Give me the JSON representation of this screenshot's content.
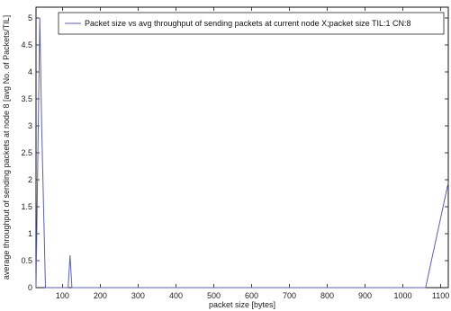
{
  "chart_data": {
    "type": "line",
    "title": "",
    "xlabel": "packet size [bytes]",
    "ylabel": "average throughput of sending packets at node 8 [avg No. of Packets/TIL]",
    "xlim": [
      30,
      1120
    ],
    "ylim": [
      0,
      5.2
    ],
    "xticks": [
      100,
      200,
      300,
      400,
      500,
      600,
      700,
      800,
      900,
      1000,
      1100
    ],
    "yticks": [
      0,
      0.5,
      1,
      1.5,
      2,
      2.5,
      3,
      3.5,
      4,
      4.5,
      5
    ],
    "grid": false,
    "legend_position": "top-right",
    "series": [
      {
        "name": "Packet size vs avg throughput of sending packets at current node X;packet size TIL:1 CN:8",
        "color": "#5a5fb0",
        "x": [
          30,
          40,
          45,
          55,
          100,
          110,
          115,
          120,
          125,
          135,
          200,
          750,
          1060,
          1120
        ],
        "y": [
          0,
          5,
          3,
          0,
          0,
          0,
          0,
          0.6,
          0,
          0,
          0,
          0,
          0,
          1.95
        ]
      }
    ]
  }
}
